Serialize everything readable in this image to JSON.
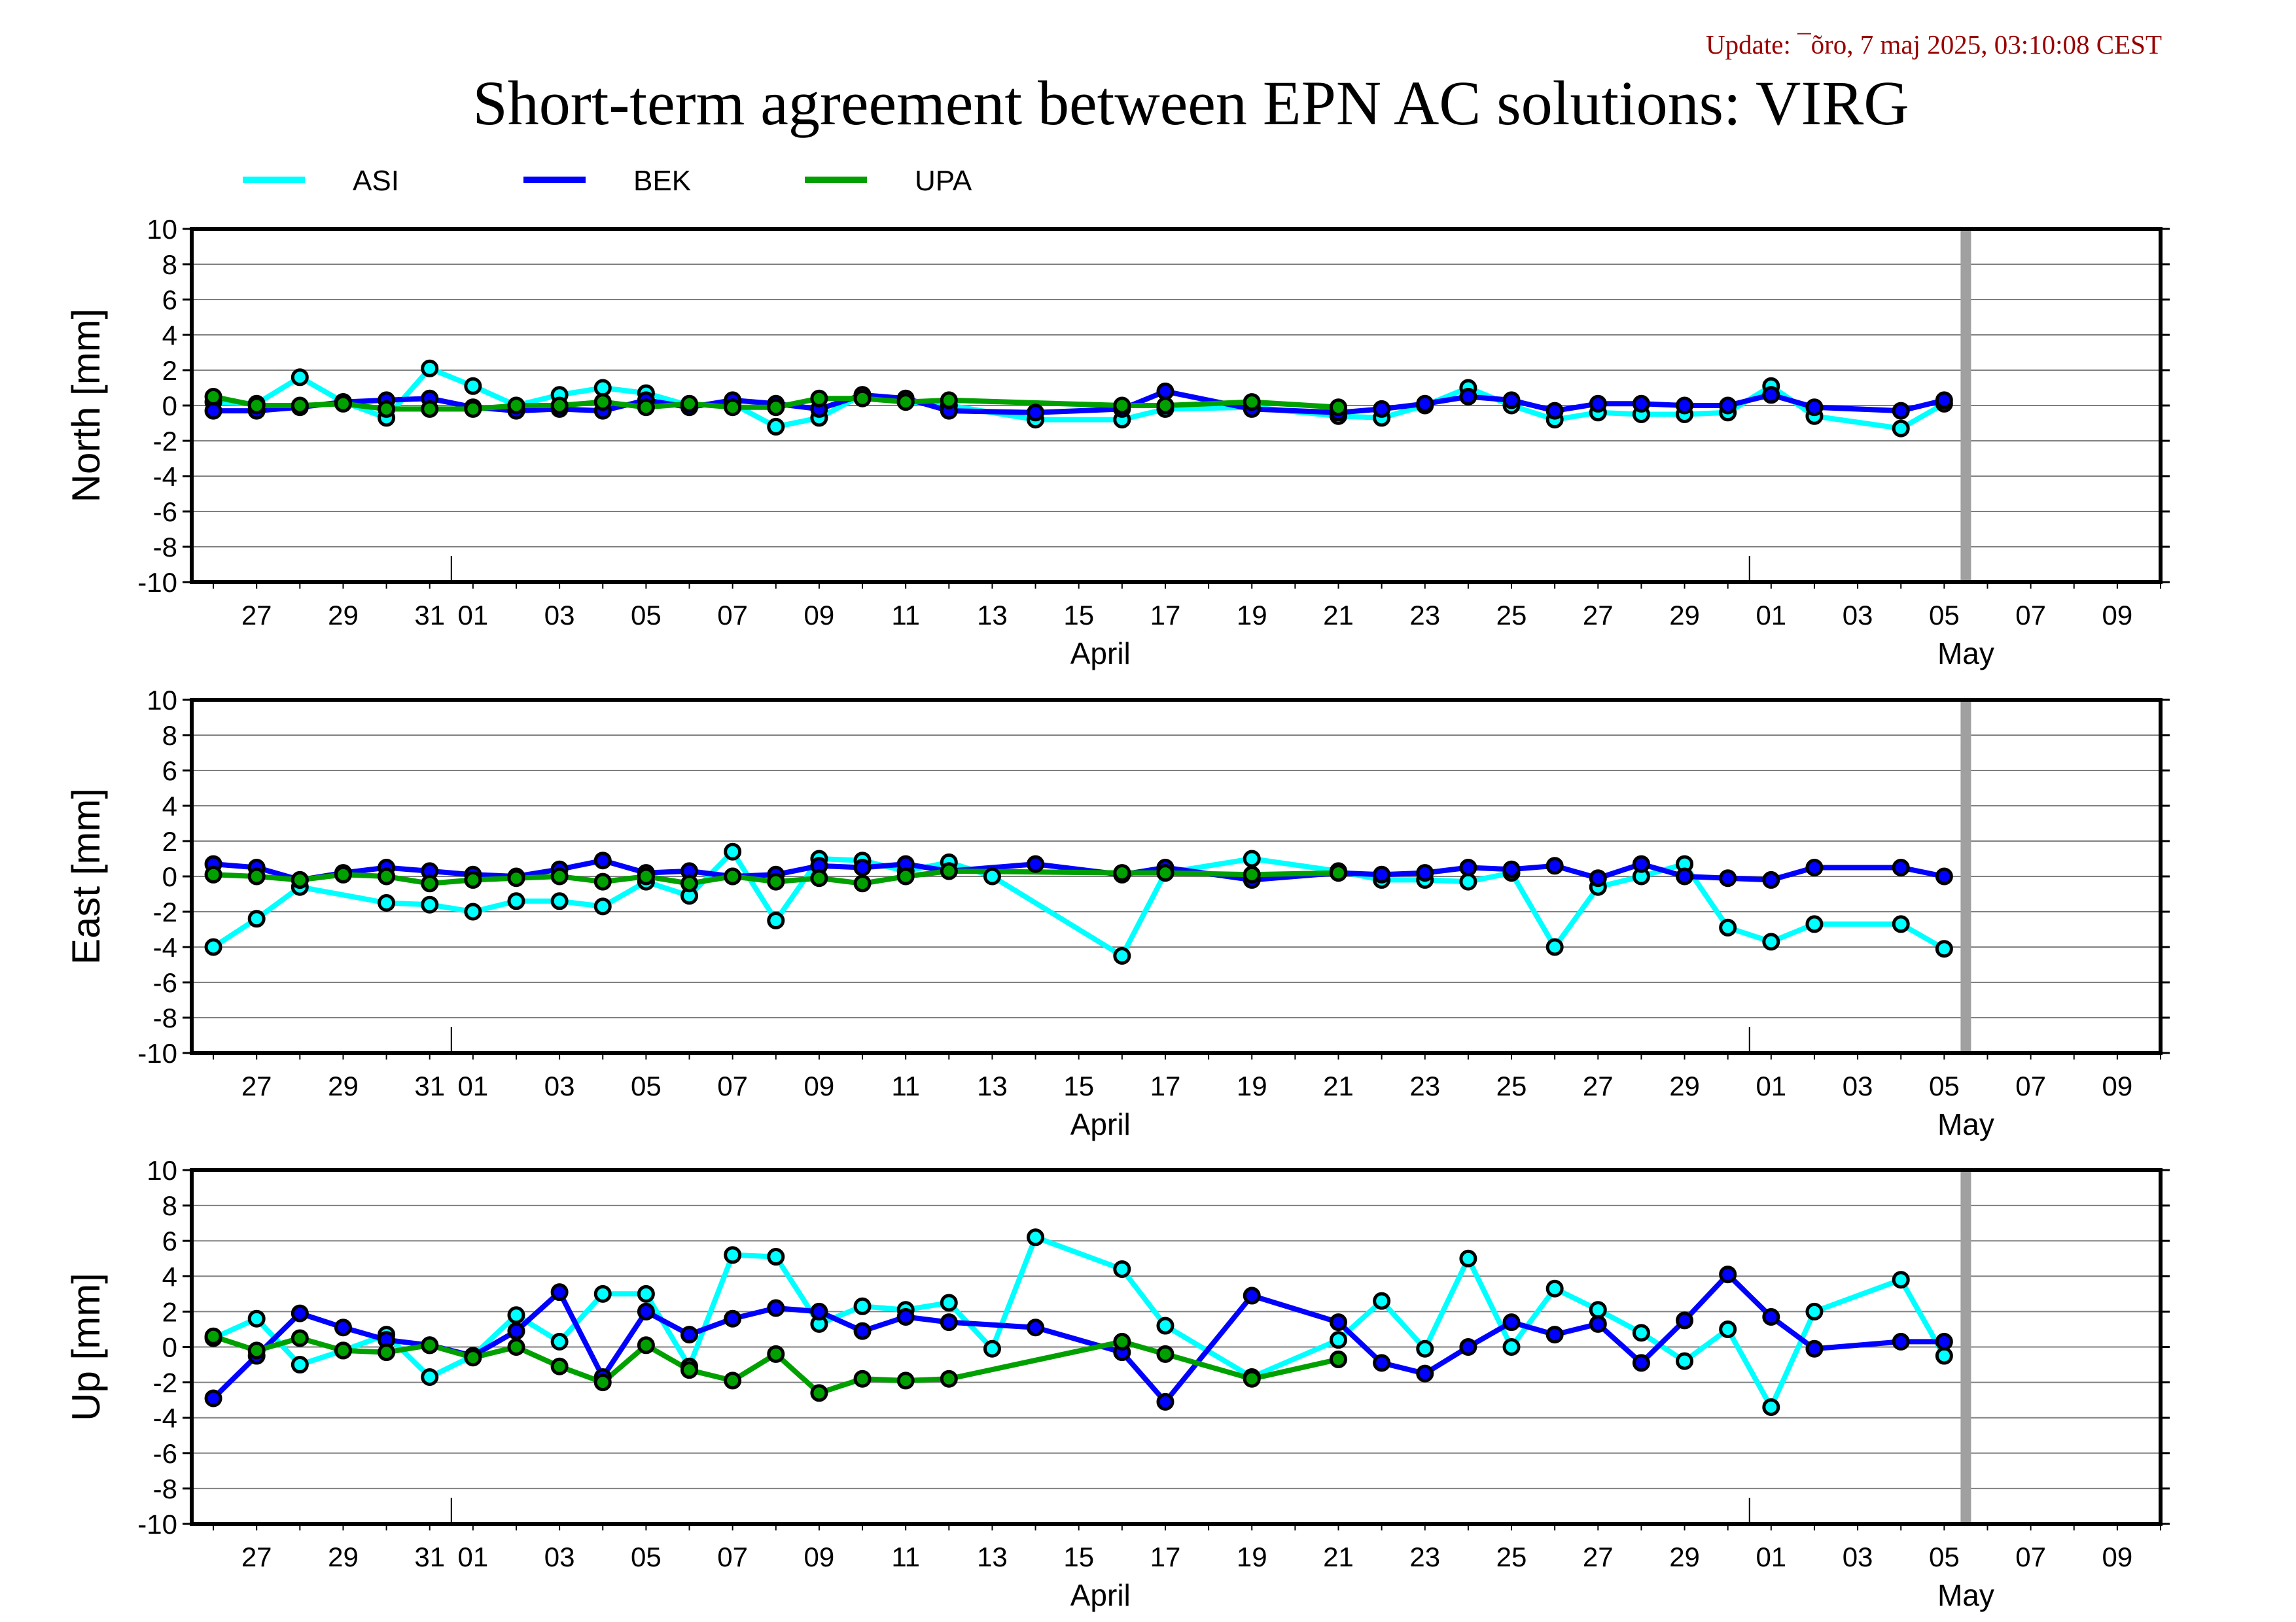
{
  "update_text": "Update: ¯õro, 7 maj 2025, 03:10:08 CEST",
  "title": "Short-term agreement between EPN AC solutions: VIRG",
  "legend": [
    {
      "label": "ASI",
      "color": "#00ffff"
    },
    {
      "label": "BEK",
      "color": "#0000ff"
    },
    {
      "label": "UPA",
      "color": "#00a000"
    }
  ],
  "colors": {
    "ASI": "#00ffff",
    "BEK": "#0000ff",
    "UPA": "#00a000",
    "marker_edge": "#000000",
    "grid": "#808080",
    "marker_line": "#a0a0a0"
  },
  "x_axis": {
    "tick_labels": [
      "27",
      "29",
      "31",
      "01",
      "03",
      "05",
      "07",
      "09",
      "11",
      "13",
      "15",
      "17",
      "19",
      "21",
      "23",
      "25",
      "27",
      "29",
      "01",
      "03",
      "05",
      "07",
      "09"
    ],
    "tick_days": [
      -9,
      -7,
      -5,
      -4,
      -2,
      0,
      2,
      4,
      6,
      8,
      10,
      12,
      14,
      16,
      18,
      20,
      22,
      24,
      26,
      28,
      30,
      32,
      34
    ],
    "month_labels": [
      {
        "text": "April",
        "day": 10.5
      },
      {
        "text": "May",
        "day": 30.5
      }
    ],
    "month_boundaries": [
      -4.5,
      25.5
    ],
    "range_days": [
      -10.5,
      35
    ],
    "current_day_marker": 30.5
  },
  "chart_data": [
    {
      "type": "line",
      "ylabel": "North [mm]",
      "ylim": [
        -10,
        10
      ],
      "yticks": [
        10,
        8,
        6,
        4,
        2,
        0,
        -2,
        -4,
        -6,
        -8,
        -10
      ],
      "grid": true,
      "series": [
        {
          "name": "ASI",
          "x": [
            -10,
            -9,
            -8,
            -7,
            -6,
            -5,
            -4,
            -3,
            -2,
            -1,
            0,
            1,
            2,
            3,
            4,
            5,
            6,
            7,
            9,
            11,
            12,
            14,
            16,
            17,
            18,
            19,
            20,
            21,
            22,
            23,
            24,
            25,
            26,
            27,
            29,
            30
          ],
          "y": [
            0.2,
            0.1,
            1.6,
            0.2,
            -0.7,
            2.1,
            1.1,
            0.0,
            0.6,
            1.0,
            0.7,
            0.0,
            0.1,
            -1.2,
            -0.7,
            0.6,
            0.2,
            0.0,
            -0.8,
            -0.8,
            -0.2,
            -0.1,
            -0.6,
            -0.7,
            0.0,
            1.0,
            0.0,
            -0.8,
            -0.4,
            -0.5,
            -0.5,
            -0.4,
            1.1,
            -0.6,
            -1.3,
            0.1
          ]
        },
        {
          "name": "BEK",
          "x": [
            -10,
            -9,
            -8,
            -7,
            -6,
            -5,
            -4,
            -3,
            -2,
            -1,
            0,
            1,
            2,
            3,
            4,
            5,
            6,
            7,
            9,
            11,
            12,
            14,
            16,
            17,
            18,
            19,
            20,
            21,
            22,
            23,
            24,
            25,
            26,
            27,
            29,
            30
          ],
          "y": [
            -0.3,
            -0.3,
            -0.1,
            0.2,
            0.3,
            0.4,
            -0.1,
            -0.3,
            -0.2,
            -0.3,
            0.3,
            -0.1,
            0.3,
            0.1,
            -0.2,
            0.6,
            0.4,
            -0.3,
            -0.4,
            -0.2,
            0.8,
            -0.2,
            -0.4,
            -0.2,
            0.1,
            0.5,
            0.3,
            -0.3,
            0.1,
            0.1,
            0.0,
            0.0,
            0.6,
            -0.1,
            -0.3,
            0.3
          ]
        },
        {
          "name": "UPA",
          "x": [
            -10,
            -9,
            -8,
            -7,
            -6,
            -5,
            -4,
            -3,
            -2,
            -1,
            0,
            1,
            2,
            3,
            4,
            5,
            6,
            7,
            11,
            12,
            14,
            16
          ],
          "y": [
            0.5,
            0.0,
            0.0,
            0.1,
            -0.2,
            -0.2,
            -0.2,
            0.0,
            0.0,
            0.2,
            -0.1,
            0.1,
            -0.1,
            -0.1,
            0.4,
            0.4,
            0.2,
            0.3,
            0.0,
            0.0,
            0.2,
            -0.1
          ]
        }
      ]
    },
    {
      "type": "line",
      "ylabel": "East [mm]",
      "ylim": [
        -10,
        10
      ],
      "yticks": [
        10,
        8,
        6,
        4,
        2,
        0,
        -2,
        -4,
        -6,
        -8,
        -10
      ],
      "grid": true,
      "series": [
        {
          "name": "ASI",
          "x": [
            -10,
            -9,
            -8,
            -6,
            -5,
            -4,
            -3,
            -2,
            -1,
            0,
            1,
            2,
            3,
            4,
            5,
            6,
            7,
            8,
            11,
            12,
            14,
            16,
            17,
            18,
            19,
            20,
            21,
            22,
            23,
            24,
            25,
            26,
            27,
            29,
            30
          ],
          "y": [
            -4.0,
            -2.4,
            -0.6,
            -1.5,
            -1.6,
            -2.0,
            -1.4,
            -1.4,
            -1.7,
            -0.3,
            -1.1,
            1.4,
            -2.5,
            1.0,
            0.9,
            0.3,
            0.8,
            0.0,
            -4.5,
            0.2,
            1.0,
            0.3,
            -0.2,
            -0.2,
            -0.3,
            0.2,
            -4.0,
            -0.6,
            0.0,
            0.7,
            -2.9,
            -3.7,
            -2.7,
            -2.7,
            -4.1
          ]
        },
        {
          "name": "BEK",
          "x": [
            -10,
            -9,
            -8,
            -7,
            -6,
            -5,
            -4,
            -3,
            -2,
            -1,
            0,
            1,
            2,
            3,
            4,
            5,
            6,
            7,
            9,
            11,
            12,
            14,
            16,
            17,
            18,
            19,
            20,
            21,
            22,
            23,
            24,
            25,
            26,
            27,
            29,
            30
          ],
          "y": [
            0.7,
            0.5,
            -0.2,
            0.2,
            0.5,
            0.3,
            0.1,
            0.0,
            0.4,
            0.9,
            0.2,
            0.3,
            0.0,
            0.1,
            0.6,
            0.5,
            0.7,
            0.3,
            0.7,
            0.1,
            0.5,
            -0.2,
            0.2,
            0.1,
            0.2,
            0.5,
            0.4,
            0.6,
            -0.1,
            0.7,
            0.0,
            -0.1,
            -0.2,
            0.5,
            0.5,
            0.0
          ]
        },
        {
          "name": "UPA",
          "x": [
            -10,
            -9,
            -8,
            -7,
            -6,
            -5,
            -4,
            -3,
            -2,
            -1,
            0,
            1,
            2,
            3,
            4,
            5,
            6,
            7,
            11,
            12,
            14,
            16
          ],
          "y": [
            0.1,
            0.0,
            -0.2,
            0.1,
            0.0,
            -0.4,
            -0.2,
            -0.1,
            0.0,
            -0.3,
            0.0,
            -0.4,
            0.0,
            -0.3,
            -0.1,
            -0.4,
            0.0,
            0.3,
            0.2,
            0.2,
            0.1,
            0.2
          ]
        }
      ]
    },
    {
      "type": "line",
      "ylabel": "Up [mm]",
      "ylim": [
        -10,
        10
      ],
      "yticks": [
        10,
        8,
        6,
        4,
        2,
        0,
        -2,
        -4,
        -6,
        -8,
        -10
      ],
      "grid": true,
      "series": [
        {
          "name": "ASI",
          "x": [
            -10,
            -9,
            -8,
            -7,
            -6,
            -5,
            -4,
            -3,
            -2,
            -1,
            0,
            1,
            2,
            3,
            4,
            5,
            6,
            7,
            8,
            9,
            11,
            12,
            14,
            16,
            17,
            18,
            19,
            20,
            21,
            22,
            23,
            24,
            25,
            26,
            27,
            29,
            30
          ],
          "y": [
            0.5,
            1.6,
            -1.0,
            -0.2,
            0.7,
            -1.7,
            -0.5,
            1.8,
            0.3,
            3.0,
            3.0,
            -1.1,
            5.2,
            5.1,
            1.3,
            2.3,
            2.1,
            2.5,
            -0.1,
            6.2,
            4.4,
            1.2,
            -1.7,
            0.4,
            2.6,
            -0.1,
            5.0,
            0.0,
            3.3,
            2.1,
            0.8,
            -0.8,
            1.0,
            -3.4,
            2.0,
            3.8,
            -0.5
          ]
        },
        {
          "name": "BEK",
          "x": [
            -10,
            -9,
            -8,
            -7,
            -6,
            -5,
            -4,
            -3,
            -2,
            -1,
            0,
            1,
            2,
            3,
            4,
            5,
            6,
            7,
            9,
            11,
            12,
            14,
            16,
            17,
            18,
            19,
            20,
            21,
            22,
            23,
            24,
            25,
            26,
            27,
            29,
            30
          ],
          "y": [
            -2.9,
            -0.5,
            1.9,
            1.1,
            0.4,
            0.1,
            -0.5,
            0.9,
            3.1,
            -1.7,
            2.0,
            0.7,
            1.6,
            2.2,
            2.0,
            0.9,
            1.7,
            1.4,
            1.1,
            -0.3,
            -3.1,
            2.9,
            1.4,
            -0.9,
            -1.5,
            0.0,
            1.4,
            0.7,
            1.3,
            -0.9,
            1.5,
            4.1,
            1.7,
            -0.1,
            0.3,
            0.3
          ]
        },
        {
          "name": "UPA",
          "x": [
            -10,
            -9,
            -8,
            -7,
            -6,
            -5,
            -4,
            -3,
            -2,
            -1,
            0,
            1,
            2,
            3,
            4,
            5,
            6,
            7,
            11,
            12,
            14,
            16
          ],
          "y": [
            0.6,
            -0.2,
            0.5,
            -0.2,
            -0.3,
            0.1,
            -0.6,
            0.0,
            -1.1,
            -2.0,
            0.1,
            -1.3,
            -1.9,
            -0.4,
            -2.6,
            -1.8,
            -1.9,
            -1.8,
            0.3,
            -0.4,
            -1.8,
            -0.7
          ]
        }
      ]
    }
  ]
}
